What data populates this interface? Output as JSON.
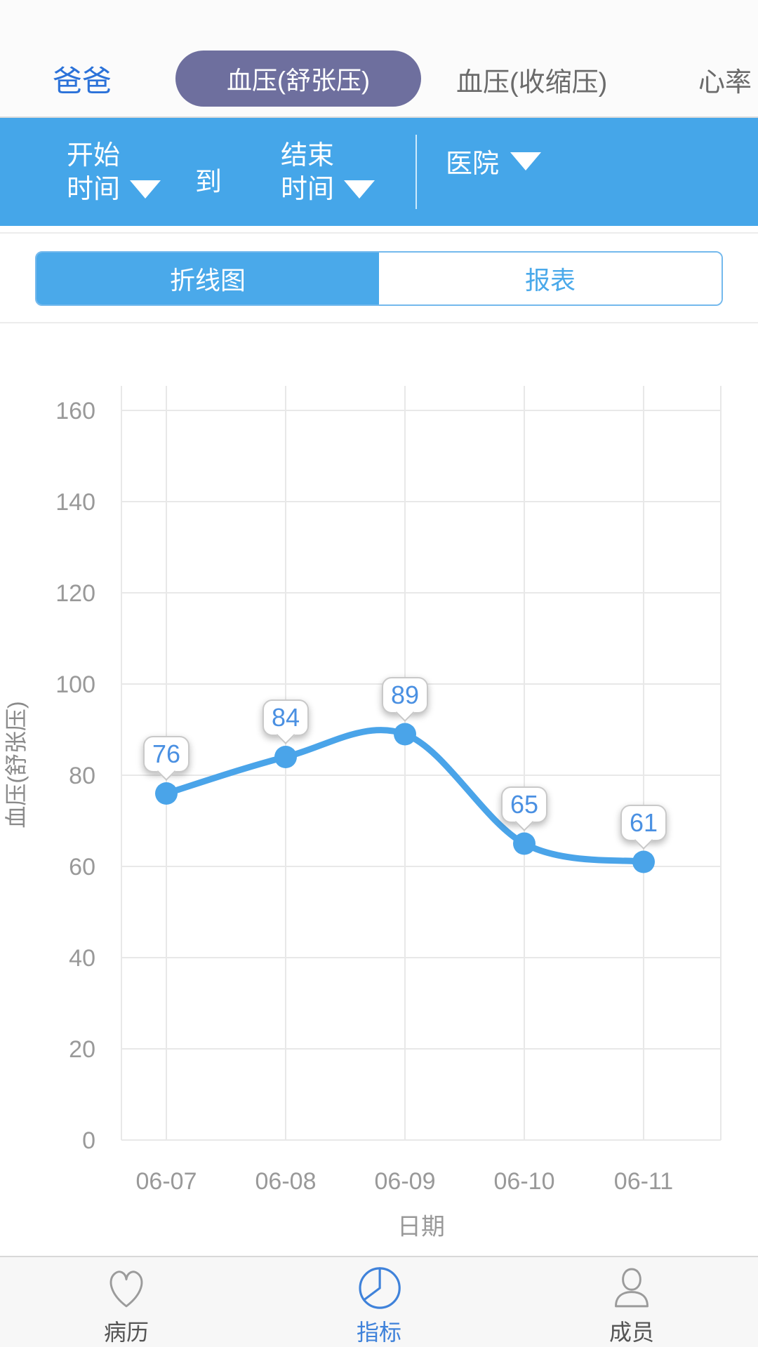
{
  "header": {
    "user_label": "爸爸",
    "tabs": [
      {
        "label": "血压(舒张压)",
        "active": true
      },
      {
        "label": "血压(收缩压)",
        "active": false
      },
      {
        "label": "心率",
        "active": false
      }
    ]
  },
  "filter_bar": {
    "start_line1": "开始",
    "start_line2": "时间",
    "to_label": "到",
    "end_line1": "结束",
    "end_line2": "时间",
    "hospital_label": "医院"
  },
  "view_toggle": {
    "line_chart_label": "折线图",
    "report_label": "报表",
    "selected": "折线图"
  },
  "chart_data": {
    "type": "line",
    "categories": [
      "06-07",
      "06-08",
      "06-09",
      "06-10",
      "06-11"
    ],
    "values": [
      76,
      84,
      89,
      65,
      61
    ],
    "point_labels": [
      "76",
      "84",
      "89",
      "65",
      "61"
    ],
    "xlabel": "日期",
    "ylabel": "血压(舒张压)",
    "ylim": [
      0,
      160
    ],
    "ytick_step": 20,
    "grid": true,
    "legend": "none",
    "line_color": "#4aa4e9",
    "point_color": "#4aa4e9",
    "grid_color": "#e8e8e8",
    "tick_color": "#999999"
  },
  "bottom_nav": {
    "items": [
      {
        "label": "病历",
        "icon": "heart-icon",
        "active": false
      },
      {
        "label": "指标",
        "icon": "pie-chart-icon",
        "active": true
      },
      {
        "label": "成员",
        "icon": "person-icon",
        "active": false
      }
    ]
  },
  "colors": {
    "accent_blue": "#45a6e9",
    "header_pill": "#6e6f9e",
    "user_label_blue": "#2b72d9",
    "tooltip_text": "#4a90e2",
    "nav_active": "#3f82da"
  }
}
